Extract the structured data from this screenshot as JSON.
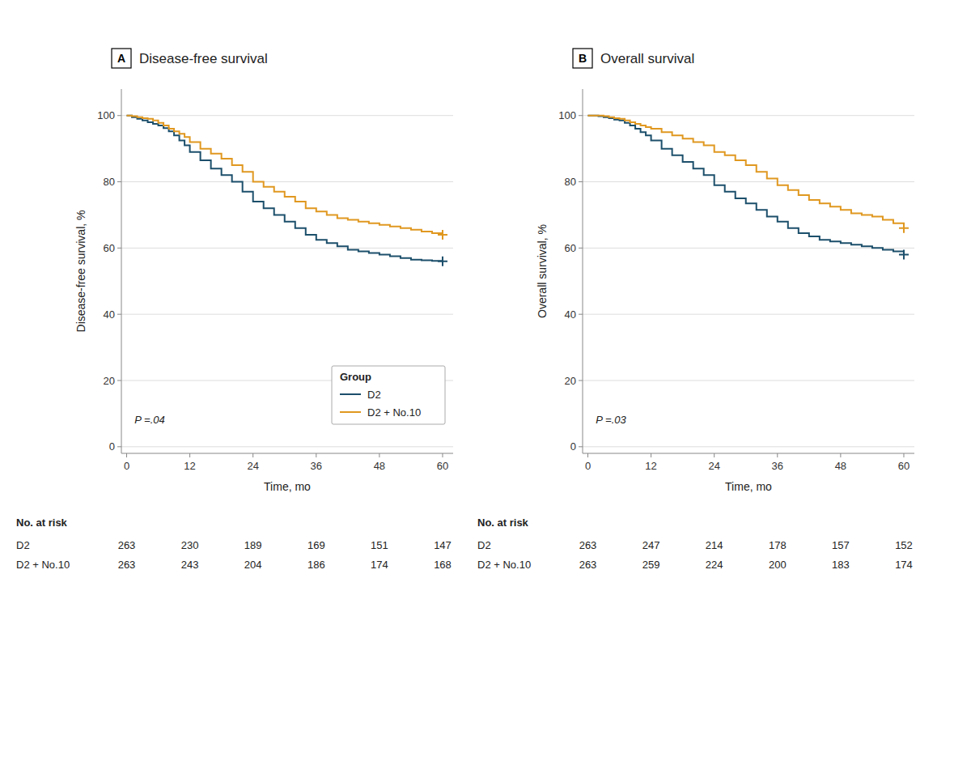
{
  "chart_data": [
    {
      "type": "step",
      "panel_label": "A",
      "title": "Disease-free survival",
      "x_label": "Time, mo",
      "y_label": "Disease-free survival, %",
      "x": [
        0,
        1,
        2,
        3,
        4,
        5,
        6,
        7,
        8,
        9,
        10,
        11,
        12,
        14,
        16,
        18,
        20,
        22,
        24,
        26,
        28,
        30,
        32,
        34,
        36,
        38,
        40,
        42,
        44,
        46,
        48,
        50,
        52,
        54,
        56,
        58,
        60
      ],
      "series": [
        {
          "name": "D2",
          "color": "#1c4f6b",
          "marker": "plus",
          "values": [
            100,
            99.5,
            99,
            98.5,
            98,
            97.5,
            97,
            96.2,
            95.2,
            94,
            92.5,
            91,
            89,
            86.5,
            84,
            82,
            80,
            77,
            74,
            72,
            70,
            68,
            66,
            64,
            62.5,
            61.5,
            60.5,
            59.5,
            59,
            58.5,
            58,
            57.5,
            57,
            56.5,
            56.3,
            56.1,
            56
          ]
        },
        {
          "name": "D2 + No.10",
          "color": "#e09820",
          "marker": "plus",
          "values": [
            100,
            99.8,
            99.5,
            99.2,
            99,
            98.5,
            97.8,
            97,
            96,
            95.2,
            94.5,
            93.5,
            92,
            90,
            88.5,
            87,
            85,
            83,
            80,
            78.5,
            77,
            75.5,
            74,
            72,
            71,
            70,
            69,
            68.5,
            68,
            67.5,
            67,
            66.5,
            66,
            65.5,
            65,
            64.5,
            64
          ]
        }
      ],
      "xlim": [
        -1,
        62
      ],
      "ylim": [
        -2,
        108
      ],
      "xticks": [
        0,
        12,
        24,
        36,
        48,
        60
      ],
      "yticks": [
        0,
        20,
        40,
        60,
        80,
        100
      ],
      "grid": true,
      "legend": "lower right",
      "legend_title": "Group",
      "annotations": [
        {
          "text": "P =.04",
          "x": 1.5,
          "y": 7
        }
      ],
      "risk_table": {
        "title": "No. at risk",
        "x": [
          0,
          12,
          24,
          36,
          48,
          60
        ],
        "rows": [
          {
            "name": "D2",
            "values": [
              263,
              230,
              189,
              169,
              151,
              147
            ]
          },
          {
            "name": "D2 + No.10",
            "values": [
              263,
              243,
              204,
              186,
              174,
              168
            ]
          }
        ]
      }
    },
    {
      "type": "step",
      "panel_label": "B",
      "title": "Overall survival",
      "x_label": "Time, mo",
      "y_label": "Overall survival, %",
      "x": [
        0,
        1,
        2,
        3,
        4,
        5,
        6,
        7,
        8,
        9,
        10,
        11,
        12,
        14,
        16,
        18,
        20,
        22,
        24,
        26,
        28,
        30,
        32,
        34,
        36,
        38,
        40,
        42,
        44,
        46,
        48,
        50,
        52,
        54,
        56,
        58,
        60
      ],
      "series": [
        {
          "name": "D2",
          "color": "#1c4f6b",
          "marker": "plus",
          "values": [
            100,
            100,
            99.8,
            99.5,
            99.2,
            98.8,
            98.5,
            97.8,
            97,
            96,
            95,
            94,
            92.5,
            90,
            88,
            86,
            84,
            82,
            79,
            77,
            75,
            73.5,
            71.5,
            69.5,
            68,
            66,
            64.5,
            63.5,
            62.5,
            62,
            61.5,
            61,
            60.5,
            60,
            59.5,
            59,
            58
          ]
        },
        {
          "name": "D2 + No.10",
          "color": "#e09820",
          "marker": "plus",
          "values": [
            100,
            100,
            100,
            99.8,
            99.5,
            99.2,
            99,
            98.5,
            98,
            97.5,
            97,
            96.5,
            96,
            95,
            94,
            93,
            92,
            91,
            89,
            88,
            86.5,
            85,
            83,
            81,
            79,
            77.5,
            76,
            74.5,
            73.5,
            72.5,
            71.5,
            70.5,
            70,
            69.5,
            68.5,
            67.5,
            66
          ]
        }
      ],
      "xlim": [
        -1,
        62
      ],
      "ylim": [
        -2,
        108
      ],
      "xticks": [
        0,
        12,
        24,
        36,
        48,
        60
      ],
      "yticks": [
        0,
        20,
        40,
        60,
        80,
        100
      ],
      "grid": true,
      "annotations": [
        {
          "text": "P =.03",
          "x": 1.5,
          "y": 7
        }
      ],
      "risk_table": {
        "title": "No. at risk",
        "x": [
          0,
          12,
          24,
          36,
          48,
          60
        ],
        "rows": [
          {
            "name": "D2",
            "values": [
              263,
              247,
              214,
              178,
              157,
              152
            ]
          },
          {
            "name": "D2 + No.10",
            "values": [
              263,
              259,
              224,
              200,
              183,
              174
            ]
          }
        ]
      }
    }
  ]
}
